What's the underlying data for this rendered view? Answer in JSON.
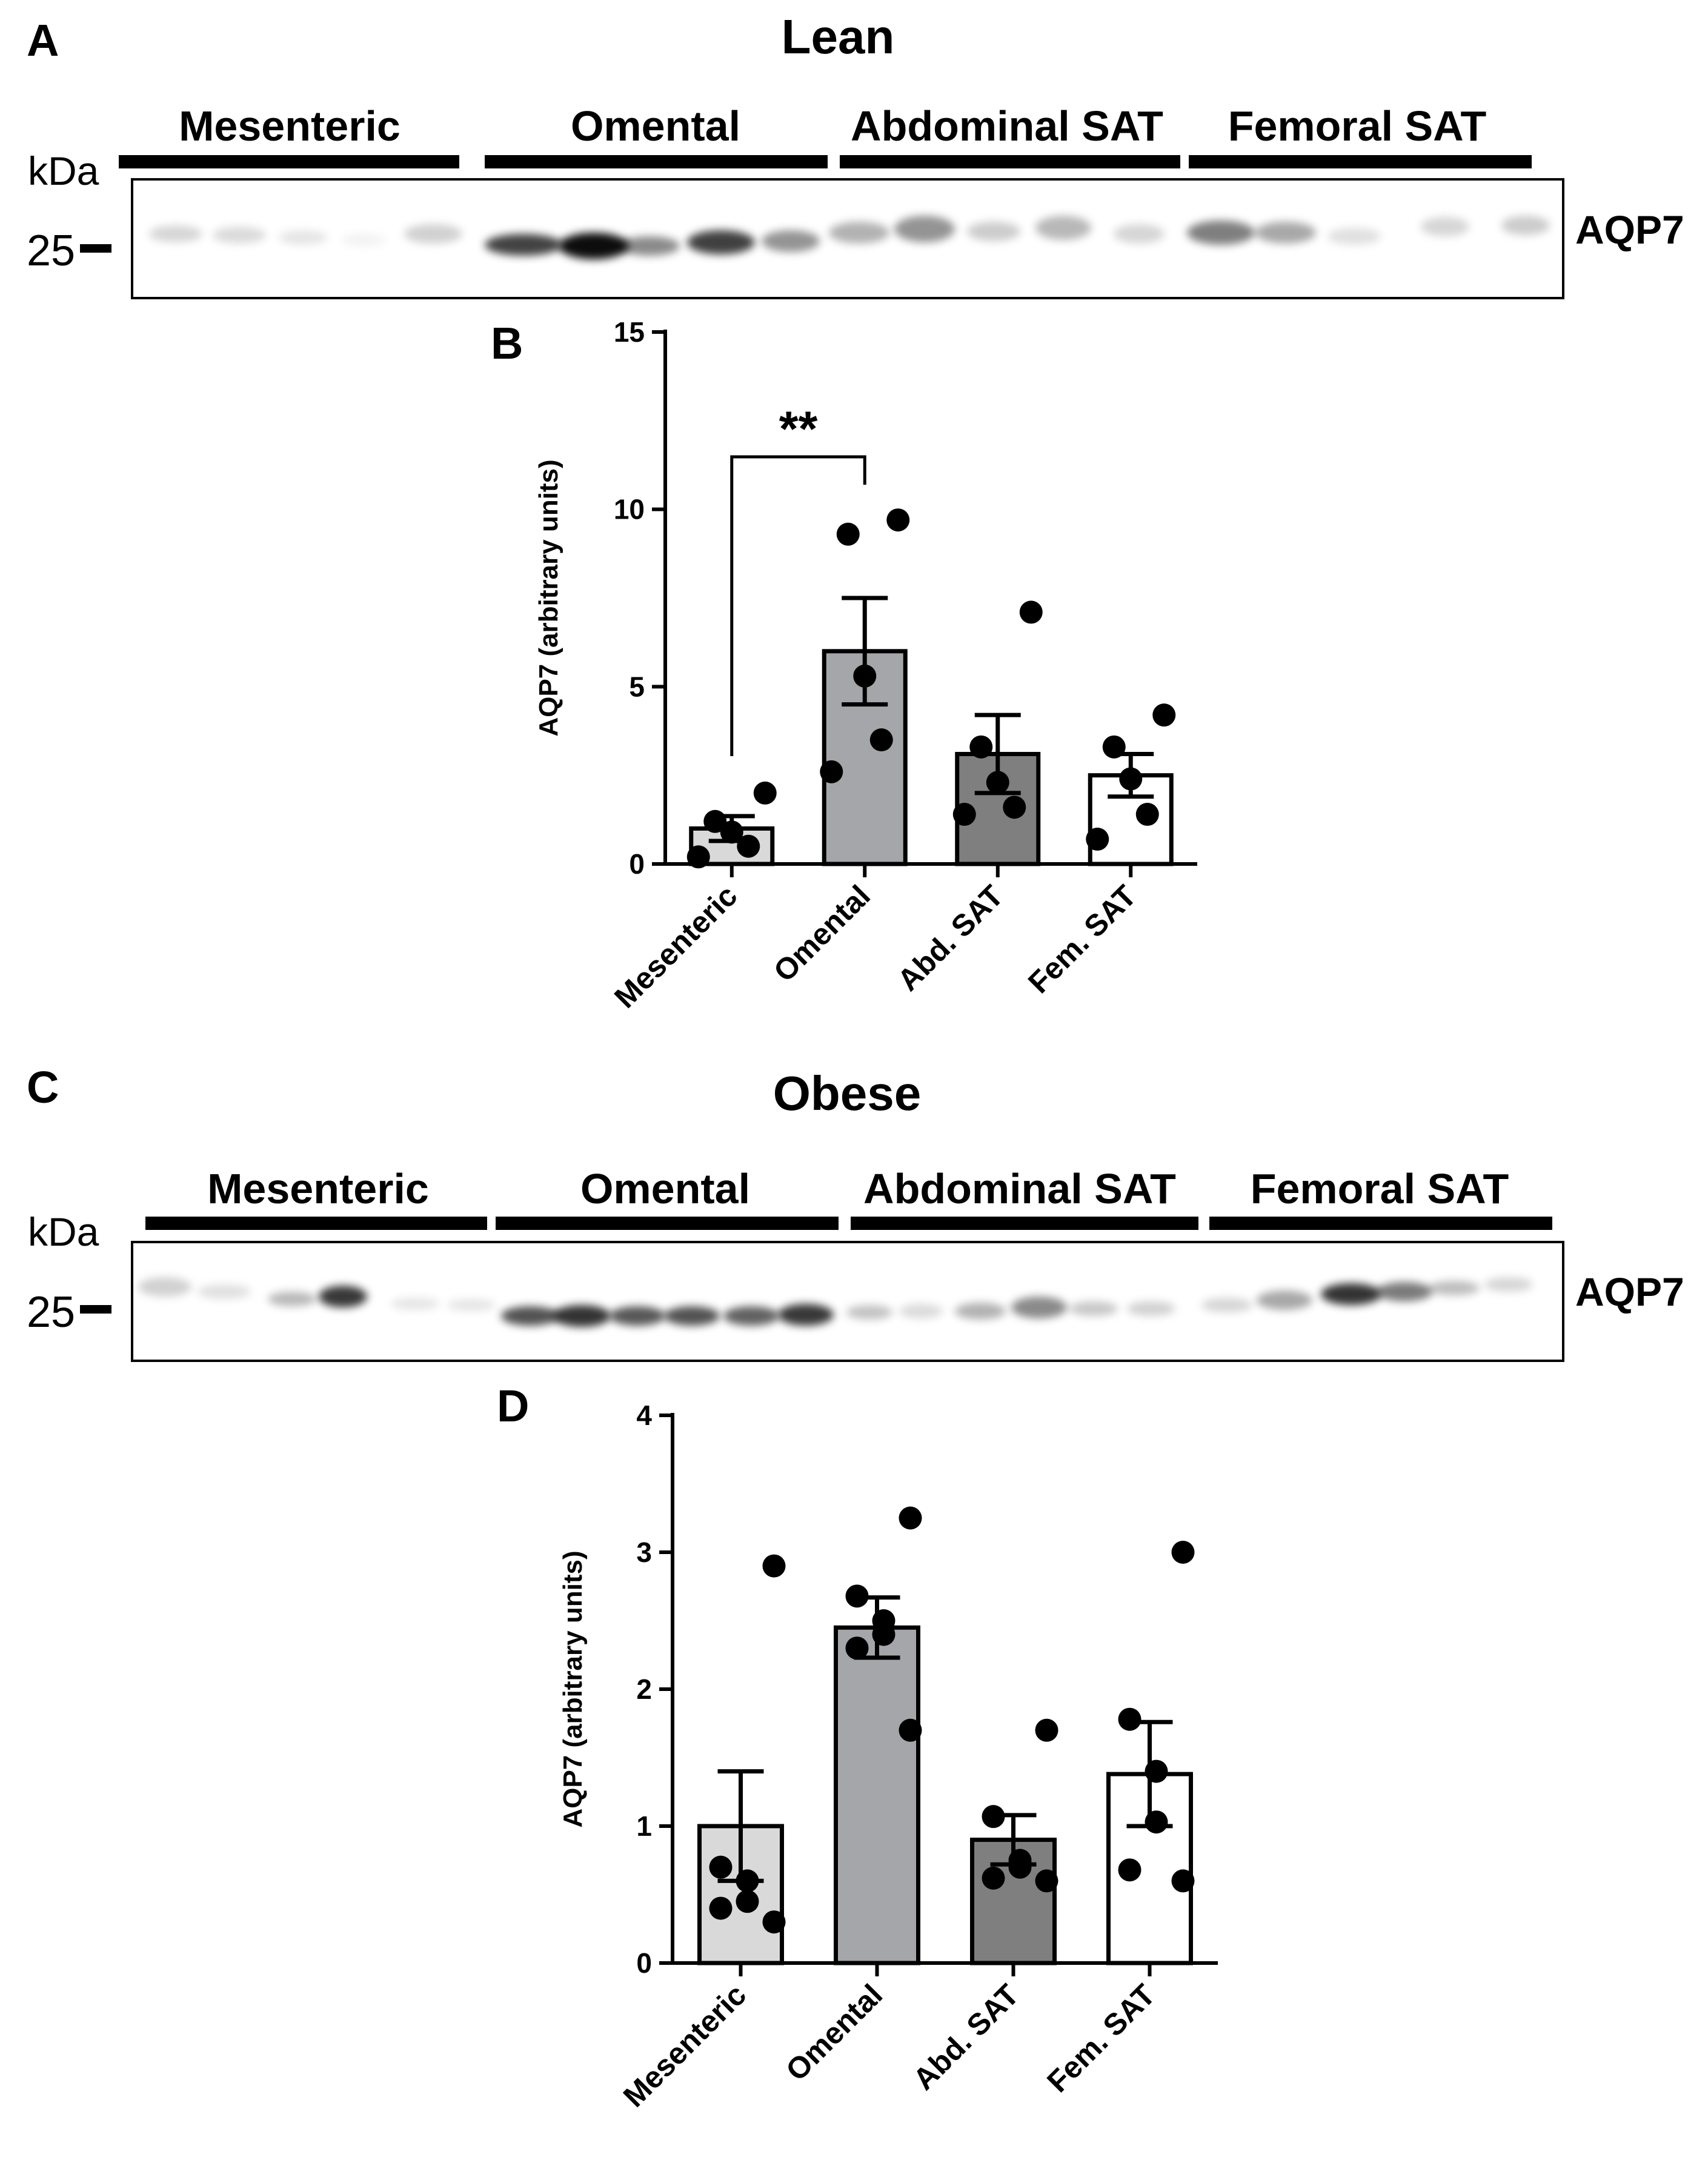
{
  "colors": {
    "ink": "#000000",
    "bar_light": "#d9d9d9",
    "bar_mid": "#a5a6aa",
    "bar_dark": "#7f7f7f",
    "bar_white": "#ffffff"
  },
  "panels": {
    "A": {
      "letter": "A",
      "title": "Lean",
      "groups": [
        "Mesenteric",
        "Omental",
        "Abdominal SAT",
        "Femoral SAT"
      ],
      "kda": "kDa",
      "marker": "25",
      "protein": "AQP7"
    },
    "C": {
      "letter": "C",
      "title": "Obese",
      "groups": [
        "Mesenteric",
        "Omental",
        "Abdominal SAT",
        "Femoral SAT"
      ],
      "kda": "kDa",
      "marker": "25",
      "protein": "AQP7"
    }
  },
  "chart_data": [
    {
      "panel": "B",
      "type": "bar",
      "title": "",
      "ylabel": "AQP7 (arbitrary units)",
      "xlabel": "",
      "categories": [
        "Mesenteric",
        "Omental",
        "Abd. SAT",
        "Fem. SAT"
      ],
      "values": [
        1.0,
        6.0,
        3.1,
        2.5
      ],
      "sem": [
        0.35,
        1.5,
        1.1,
        0.6
      ],
      "points": [
        [
          2.0,
          1.2,
          0.9,
          0.5,
          0.2
        ],
        [
          9.7,
          9.3,
          5.3,
          3.5,
          2.6
        ],
        [
          7.1,
          3.3,
          2.3,
          1.6,
          1.4
        ],
        [
          4.2,
          3.3,
          2.4,
          1.4,
          0.7
        ]
      ],
      "ylim": [
        0,
        15
      ],
      "yticks": [
        "0",
        "5",
        "10",
        "15"
      ],
      "significance": {
        "from": 0,
        "to": 1,
        "label": "**"
      }
    },
    {
      "panel": "D",
      "type": "bar",
      "title": "",
      "ylabel": "AQP7 (arbitrary units)",
      "xlabel": "",
      "categories": [
        "Mesenteric",
        "Omental",
        "Abd. SAT",
        "Fem. SAT"
      ],
      "values": [
        1.0,
        2.45,
        0.9,
        1.38
      ],
      "sem": [
        0.4,
        0.22,
        0.18,
        0.38
      ],
      "points": [
        [
          2.9,
          0.7,
          0.6,
          0.45,
          0.4,
          0.3
        ],
        [
          3.25,
          2.68,
          2.5,
          2.4,
          2.3,
          1.7
        ],
        [
          1.7,
          1.07,
          0.75,
          0.7,
          0.62,
          0.6
        ],
        [
          3.0,
          1.78,
          1.4,
          1.03,
          0.68,
          0.6
        ]
      ],
      "ylim": [
        0,
        4
      ],
      "yticks": [
        "0",
        "1",
        "2",
        "3",
        "4"
      ]
    }
  ]
}
